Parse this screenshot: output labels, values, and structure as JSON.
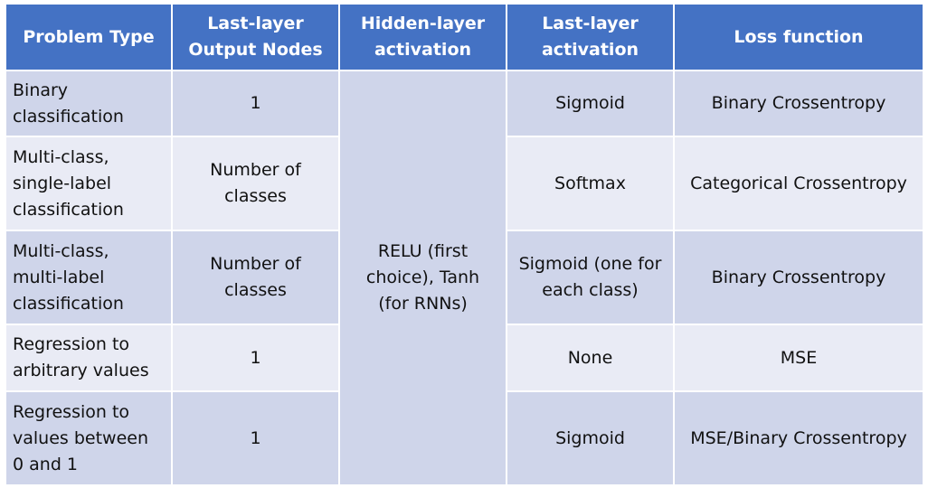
{
  "headers": [
    "Problem Type",
    "Last-layer\nOutput Nodes",
    "Hidden-layer\nactivation",
    "Last-layer\nactivation",
    "Loss function"
  ],
  "hidden_layer_activation": "RELU (first\nchoice), Tanh\n(for RNNs)",
  "rows": [
    {
      "problem_type": "Binary\nclassification",
      "output_nodes": "1",
      "last_activation": "Sigmoid",
      "loss": "Binary Crossentropy"
    },
    {
      "problem_type": "Multi-class,\nsingle-label\nclassification",
      "output_nodes": "Number of\nclasses",
      "last_activation": "Softmax",
      "loss": "Categorical Crossentropy"
    },
    {
      "problem_type": "Multi-class,\nmulti-label\nclassification",
      "output_nodes": "Number of\nclasses",
      "last_activation": "Sigmoid (one for\neach class)",
      "loss": "Binary Crossentropy"
    },
    {
      "problem_type": "Regression to\narbitrary values",
      "output_nodes": "1",
      "last_activation": "None",
      "loss": "MSE"
    },
    {
      "problem_type": "Regression to\nvalues between\n0 and 1",
      "output_nodes": "1",
      "last_activation": "Sigmoid",
      "loss": "MSE/Binary Crossentropy"
    }
  ]
}
